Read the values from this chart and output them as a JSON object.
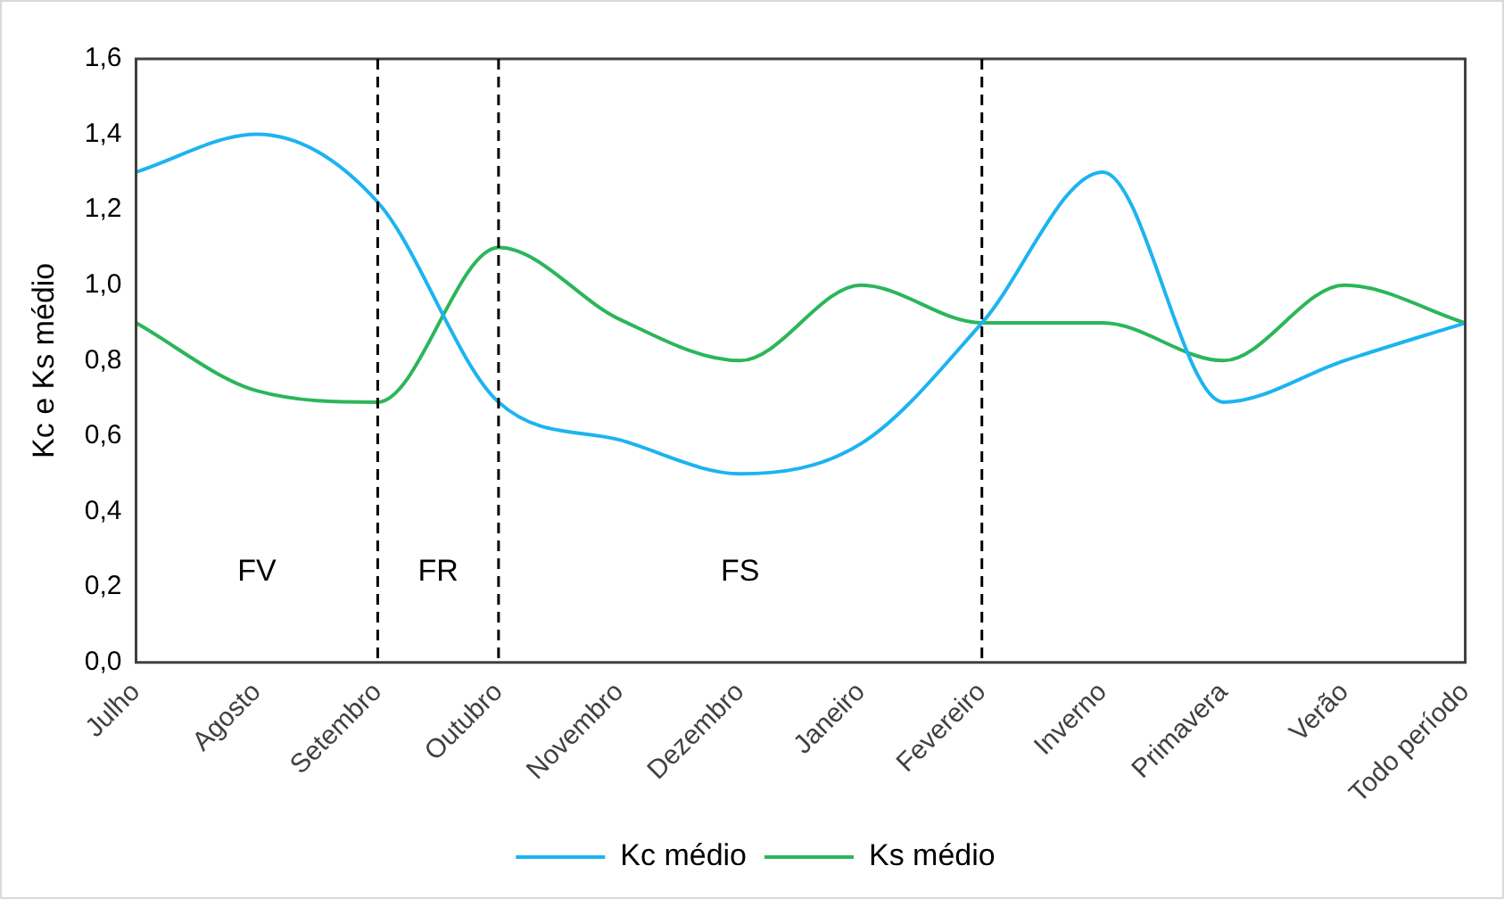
{
  "chart_data": {
    "type": "line",
    "ylabel": "Kc e Ks médio",
    "categories": [
      "Julho",
      "Agosto",
      "Setembro",
      "Outubro",
      "Novembro",
      "Dezembro",
      "Janeiro",
      "Fevereiro",
      "Inverno",
      "Primavera",
      "Verão",
      "Todo período"
    ],
    "series": [
      {
        "name": "Kc médio",
        "color": "#1cb4f0",
        "values": [
          1.3,
          1.4,
          1.22,
          0.69,
          0.59,
          0.5,
          0.58,
          0.9,
          1.3,
          0.69,
          0.8,
          0.9
        ]
      },
      {
        "name": "Ks médio",
        "color": "#2bb65a",
        "values": [
          0.9,
          0.72,
          0.69,
          1.1,
          0.91,
          0.8,
          1.0,
          0.9,
          0.9,
          0.8,
          1.0,
          0.9
        ]
      }
    ],
    "ylim": [
      0,
      1.6
    ],
    "yticks": [
      {
        "value": 0,
        "label": "0,0"
      },
      {
        "value": 0.2,
        "label": "0,2"
      },
      {
        "value": 0.4,
        "label": "0,4"
      },
      {
        "value": 0.6,
        "label": "0,6"
      },
      {
        "value": 0.8,
        "label": "0,8"
      },
      {
        "value": 1.0,
        "label": "1,0"
      },
      {
        "value": 1.2,
        "label": "1,2"
      },
      {
        "value": 1.4,
        "label": "1,4"
      },
      {
        "value": 1.6,
        "label": "1,6"
      }
    ],
    "ref_lines": [
      {
        "axis": "x",
        "value": "Setembro",
        "color": "#000000",
        "line_style": "dashed"
      },
      {
        "axis": "x",
        "value": "Outubro",
        "color": "#000000",
        "line_style": "dashed"
      },
      {
        "axis": "x",
        "value": "Fevereiro",
        "color": "#000000",
        "line_style": "dashed"
      }
    ],
    "annotations": [
      "FV",
      "FR",
      "FS"
    ],
    "grid": false,
    "legend": "bottom",
    "marker": "none",
    "line_style": "solid"
  }
}
